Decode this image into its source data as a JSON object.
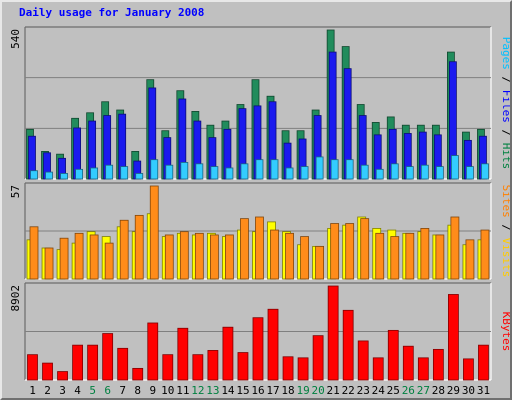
{
  "chart_data": {
    "type": "bar",
    "title": "Daily usage for January 2008",
    "categories": [
      "1",
      "2",
      "3",
      "4",
      "5",
      "6",
      "7",
      "8",
      "9",
      "10",
      "11",
      "12",
      "13",
      "14",
      "15",
      "16",
      "17",
      "18",
      "19",
      "20",
      "21",
      "22",
      "23",
      "24",
      "25",
      "26",
      "27",
      "28",
      "29",
      "30",
      "31"
    ],
    "weekend_days": [
      "5",
      "6",
      "12",
      "13",
      "19",
      "20",
      "26",
      "27"
    ],
    "panels": [
      {
        "name": "hits-files-pages",
        "ymax": 540,
        "ymax_label": "540",
        "right_label": {
          "parts": [
            {
              "text": "Pages",
              "color": "#00c0ff"
            },
            {
              "text": " / ",
              "color": "#000000"
            },
            {
              "text": "Files",
              "color": "#0000ff"
            },
            {
              "text": " / ",
              "color": "#000000"
            },
            {
              "text": "Hits",
              "color": "#008040"
            }
          ]
        },
        "series": [
          {
            "name": "Hits",
            "color": "#218c5c",
            "values": [
              180,
              100,
              90,
              220,
              240,
              280,
              250,
              100,
              360,
              175,
              320,
              245,
              195,
              210,
              270,
              360,
              300,
              175,
              175,
              250,
              540,
              480,
              270,
              205,
              225,
              195,
              195,
              195,
              460,
              170,
              180
            ]
          },
          {
            "name": "Files",
            "color": "#1a1aee",
            "values": [
              155,
              95,
              75,
              185,
              210,
              230,
              235,
              65,
              330,
              150,
              290,
              210,
              150,
              180,
              255,
              265,
              280,
              130,
              145,
              230,
              460,
              400,
              230,
              160,
              180,
              165,
              170,
              160,
              425,
              140,
              155
            ]
          },
          {
            "name": "Pages",
            "color": "#33ccff",
            "values": [
              30,
              25,
              20,
              35,
              40,
              50,
              45,
              20,
              70,
              50,
              60,
              55,
              45,
              40,
              55,
              70,
              70,
              40,
              45,
              80,
              70,
              70,
              50,
              35,
              55,
              45,
              50,
              45,
              85,
              45,
              55
            ]
          }
        ]
      },
      {
        "name": "visits-sites",
        "ymax": 57,
        "ymax_label": "57",
        "right_label": {
          "parts": [
            {
              "text": "Sites",
              "color": "#ff8000"
            },
            {
              "text": " / ",
              "color": "#000000"
            },
            {
              "text": "Visits",
              "color": "#ffcc00"
            }
          ]
        },
        "series": [
          {
            "name": "Visits",
            "color": "#ffff00",
            "values": [
              24,
              19,
              18,
              22,
              29,
              26,
              32,
              29,
              40,
              26,
              28,
              27,
              28,
              26,
              30,
              29,
              35,
              29,
              21,
              20,
              31,
              33,
              38,
              31,
              30,
              28,
              29,
              27,
              33,
              21,
              24
            ]
          },
          {
            "name": "Sites",
            "color": "#ff8c1a",
            "values": [
              32,
              19,
              25,
              28,
              27,
              22,
              36,
              39,
              57,
              27,
              29,
              28,
              27,
              27,
              37,
              38,
              30,
              28,
              26,
              20,
              34,
              34,
              37,
              28,
              26,
              28,
              31,
              27,
              38,
              24,
              30
            ]
          }
        ]
      },
      {
        "name": "kbytes",
        "ymax": 8902,
        "ymax_label": "8902",
        "right_label": {
          "parts": [
            {
              "text": "KBytes",
              "color": "#ff0000"
            }
          ]
        },
        "series": [
          {
            "name": "KBytes",
            "color": "#ff0000",
            "values": [
              2400,
              1600,
              800,
              3300,
              3300,
              4400,
              3000,
              1100,
              5400,
              2400,
              4900,
              2400,
              2800,
              5000,
              2600,
              5900,
              6700,
              2200,
              2100,
              4200,
              8900,
              6600,
              3700,
              2100,
              4700,
              3200,
              2100,
              2900,
              8100,
              2000,
              3300
            ]
          }
        ]
      }
    ]
  }
}
